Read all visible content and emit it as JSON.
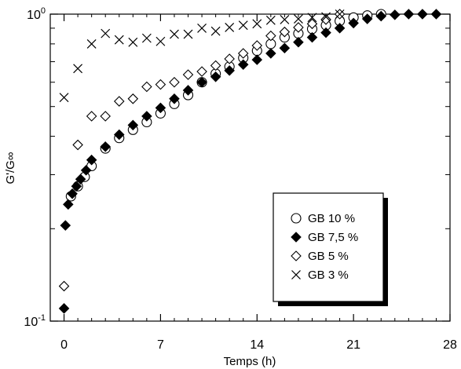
{
  "chart_data": {
    "type": "scatter",
    "title": "",
    "xlabel": "Temps (h)",
    "ylabel": "G'/G∞",
    "xlim": [
      -1,
      28
    ],
    "ylim": [
      0.1,
      1.0
    ],
    "yscale": "log",
    "x_ticks": [
      0,
      7,
      14,
      21,
      28
    ],
    "x_tick_labels": [
      "0",
      "7",
      "14",
      "21",
      "28"
    ],
    "y_tick_major": [
      {
        "value": 0.1,
        "base": "10",
        "exp": "-1"
      },
      {
        "value": 1.0,
        "base": "10",
        "exp": "0"
      }
    ],
    "y_tick_minor": [
      0.2,
      0.3,
      0.4,
      0.5,
      0.6,
      0.7,
      0.8,
      0.9
    ],
    "x_tick_minor": [
      1,
      2,
      3,
      4,
      5,
      6,
      8,
      9,
      10,
      11,
      12,
      13,
      15,
      16,
      17,
      18,
      19,
      20,
      22,
      23,
      24,
      25,
      26,
      27
    ],
    "grid": false,
    "legend_position": "bottom-right",
    "series": [
      {
        "name": "GB 10 %",
        "marker": "open-circle",
        "x": [
          0.5,
          1,
          1.5,
          2,
          3,
          4,
          5,
          6,
          7,
          8,
          9,
          10,
          11,
          12,
          13,
          14,
          15,
          16,
          17,
          18,
          19,
          20,
          21,
          22,
          23
        ],
        "y": [
          0.255,
          0.275,
          0.295,
          0.32,
          0.365,
          0.395,
          0.42,
          0.445,
          0.475,
          0.51,
          0.545,
          0.6,
          0.64,
          0.675,
          0.72,
          0.76,
          0.8,
          0.84,
          0.865,
          0.895,
          0.92,
          0.95,
          0.975,
          0.99,
          1.0
        ]
      },
      {
        "name": "GB 7,5 %",
        "marker": "filled-diamond",
        "x": [
          0,
          0.1,
          0.3,
          0.6,
          0.9,
          1.2,
          1.6,
          2,
          3,
          4,
          5,
          6,
          7,
          8,
          9,
          10,
          11,
          12,
          13,
          14,
          15,
          16,
          17,
          18,
          19,
          20,
          21,
          22,
          23,
          24,
          25,
          26,
          27
        ],
        "y": [
          0.11,
          0.205,
          0.24,
          0.26,
          0.275,
          0.29,
          0.31,
          0.335,
          0.37,
          0.405,
          0.435,
          0.465,
          0.495,
          0.53,
          0.565,
          0.6,
          0.625,
          0.655,
          0.685,
          0.71,
          0.745,
          0.775,
          0.81,
          0.84,
          0.87,
          0.9,
          0.935,
          0.965,
          0.985,
          0.995,
          1.0,
          1.0,
          1.0
        ]
      },
      {
        "name": "GB 5 %",
        "marker": "open-diamond",
        "x": [
          0,
          1,
          2,
          3,
          4,
          5,
          6,
          7,
          8,
          9,
          10,
          11,
          12,
          13,
          14,
          15,
          16,
          17,
          18,
          19,
          20
        ],
        "y": [
          0.13,
          0.375,
          0.465,
          0.465,
          0.52,
          0.53,
          0.58,
          0.59,
          0.6,
          0.635,
          0.65,
          0.68,
          0.715,
          0.745,
          0.79,
          0.85,
          0.875,
          0.905,
          0.93,
          0.96,
          1.0
        ]
      },
      {
        "name": "GB 3 %",
        "marker": "x",
        "x": [
          0,
          1,
          2,
          3,
          4,
          5,
          6,
          7,
          8,
          9,
          10,
          11,
          12,
          13,
          14,
          15,
          16,
          17,
          18,
          19,
          20
        ],
        "y": [
          0.535,
          0.665,
          0.8,
          0.865,
          0.825,
          0.81,
          0.835,
          0.815,
          0.86,
          0.86,
          0.9,
          0.88,
          0.905,
          0.92,
          0.93,
          0.955,
          0.96,
          0.965,
          0.975,
          0.98,
          1.0
        ]
      }
    ]
  }
}
